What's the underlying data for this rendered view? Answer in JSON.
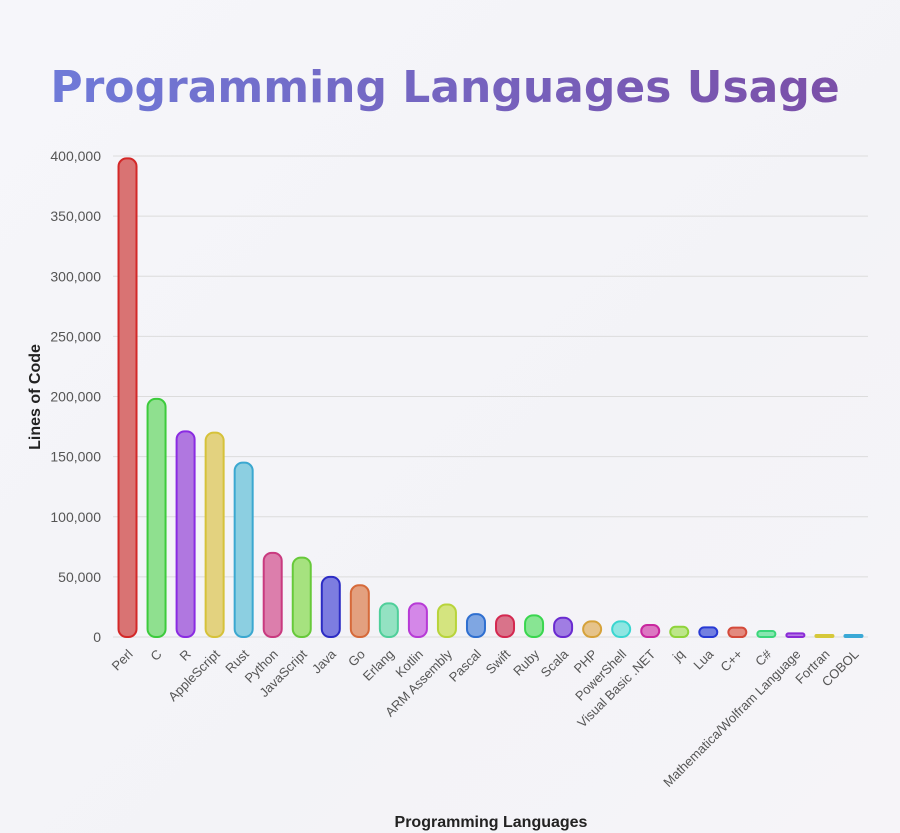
{
  "chart_data": {
    "type": "bar",
    "title": "Programming Languages Usage",
    "xlabel": "Programming Languages",
    "ylabel": "Lines of Code",
    "ylim": [
      0,
      400000
    ],
    "yticks": [
      0,
      50000,
      100000,
      150000,
      200000,
      250000,
      300000,
      350000,
      400000
    ],
    "ytick_labels": [
      "0",
      "50,000",
      "100,000",
      "150,000",
      "200,000",
      "250,000",
      "300,000",
      "350,000",
      "400,000"
    ],
    "grid": true,
    "categories": [
      "Perl",
      "C",
      "R",
      "AppleScript",
      "Rust",
      "Python",
      "JavaScript",
      "Java",
      "Go",
      "Erlang",
      "Kotlin",
      "ARM Assembly",
      "Pascal",
      "Swift",
      "Ruby",
      "Scala",
      "PHP",
      "PowerShell",
      "Visual Basic .NET",
      "jq",
      "Lua",
      "C++",
      "C#",
      "Mathematica/Wolfram Language",
      "Fortran",
      "COBOL"
    ],
    "values": [
      398000,
      198000,
      171000,
      170000,
      145000,
      70000,
      66000,
      50000,
      43000,
      28000,
      28000,
      27000,
      19000,
      18000,
      18000,
      16000,
      13000,
      13000,
      10000,
      8500,
      8000,
      7800,
      5000,
      3000,
      1000,
      800
    ],
    "colors": [
      {
        "stroke": "#d42828",
        "fill": "#d97373"
      },
      {
        "stroke": "#3ccb3c",
        "fill": "#8fe08f"
      },
      {
        "stroke": "#8a2be2",
        "fill": "#b077e0"
      },
      {
        "stroke": "#d6c23a",
        "fill": "#e3d27f"
      },
      {
        "stroke": "#3ba8d0",
        "fill": "#8ccfe1"
      },
      {
        "stroke": "#c93a7f",
        "fill": "#dc7eac"
      },
      {
        "stroke": "#67c93a",
        "fill": "#a6e27f"
      },
      {
        "stroke": "#2c2cc4",
        "fill": "#7d7de0"
      },
      {
        "stroke": "#d66a3a",
        "fill": "#e3a07f"
      },
      {
        "stroke": "#4fcf9a",
        "fill": "#93e2c2"
      },
      {
        "stroke": "#b73ad6",
        "fill": "#d487e8"
      },
      {
        "stroke": "#b8d43a",
        "fill": "#d4e47f"
      },
      {
        "stroke": "#2f6fd0",
        "fill": "#7fa6e2"
      },
      {
        "stroke": "#d42850",
        "fill": "#d9738a"
      },
      {
        "stroke": "#3ad64f",
        "fill": "#88e593"
      },
      {
        "stroke": "#6a2bd0",
        "fill": "#a07de3"
      },
      {
        "stroke": "#d6a23a",
        "fill": "#e6c38a"
      },
      {
        "stroke": "#3ad6d0",
        "fill": "#8ee6e2"
      },
      {
        "stroke": "#c9289f",
        "fill": "#dc77c2"
      },
      {
        "stroke": "#8fd43a",
        "fill": "#bde68a"
      },
      {
        "stroke": "#283ad4",
        "fill": "#7380e0"
      },
      {
        "stroke": "#d44a3a",
        "fill": "#e38a7f"
      },
      {
        "stroke": "#3ad67a",
        "fill": "#88e6b0"
      },
      {
        "stroke": "#8a2ad6",
        "fill": "#b67de6"
      },
      {
        "stroke": "#d6c83a",
        "fill": "#e6dc8a"
      },
      {
        "stroke": "#3aa8d6",
        "fill": "#8acae6"
      }
    ]
  }
}
